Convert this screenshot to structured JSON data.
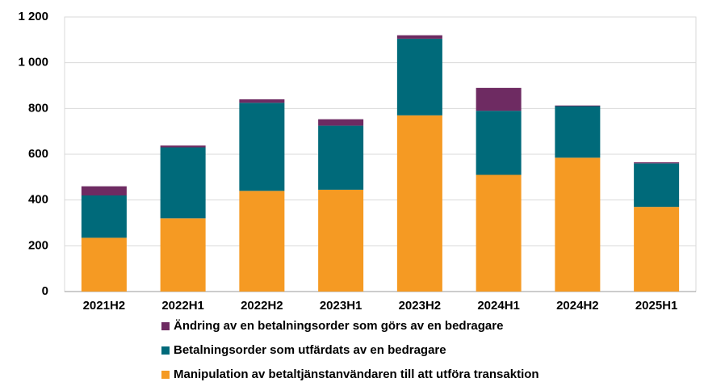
{
  "chart_data": {
    "type": "stacked_bar",
    "categories": [
      "2021H2",
      "2022H1",
      "2022H2",
      "2023H1",
      "2023H2",
      "2024H1",
      "2024H2",
      "2025H1"
    ],
    "series": [
      {
        "name": "Manipulation av betaltjänstanvändaren till att utföra transaktion",
        "color": "#f59a23",
        "values": [
          235,
          320,
          440,
          445,
          770,
          510,
          585,
          370
        ]
      },
      {
        "name": "Betalningsorder som utfärdats av en bedragare",
        "color": "#006a7a",
        "values": [
          185,
          310,
          385,
          280,
          335,
          280,
          225,
          190
        ]
      },
      {
        "name": "Ändring av en betalningsorder som görs av en bedragare",
        "color": "#6e2b62",
        "values": [
          40,
          8,
          15,
          28,
          15,
          100,
          3,
          5
        ]
      }
    ],
    "ylim": [
      0,
      1200
    ],
    "yticks": [
      0,
      200,
      400,
      600,
      800,
      {
        "value": 1000,
        "label": "1 000"
      },
      {
        "value": 1200,
        "label": "1 200"
      }
    ],
    "grid": true
  }
}
